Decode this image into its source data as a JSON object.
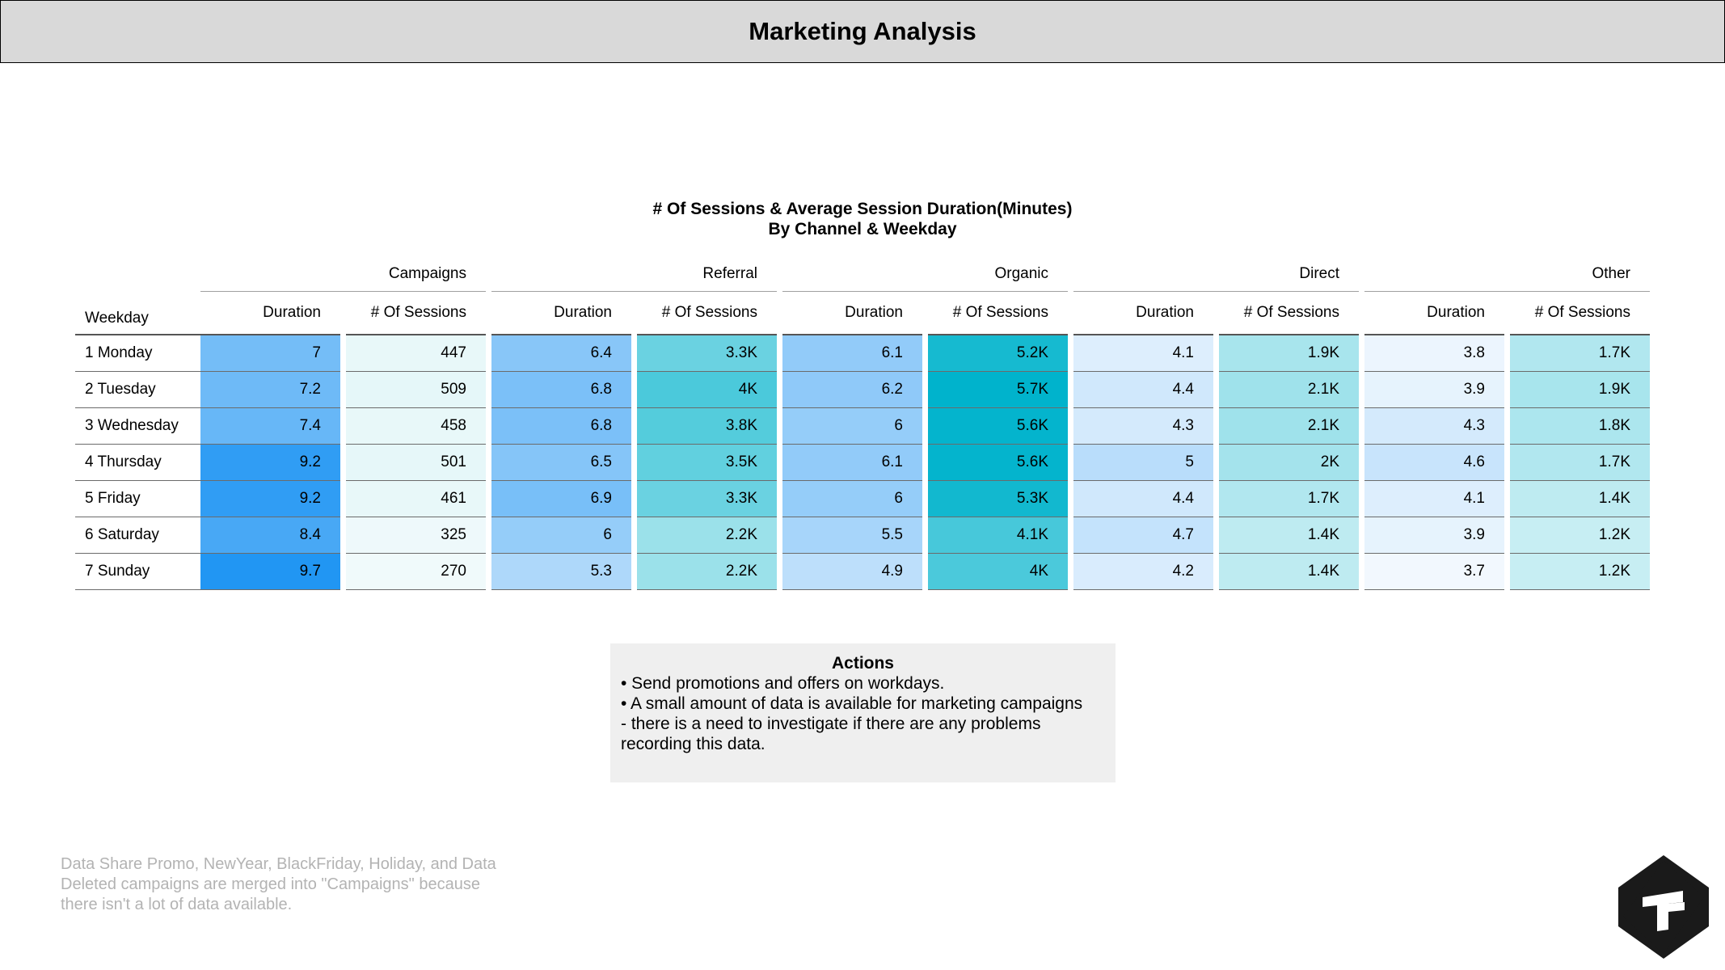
{
  "header": {
    "title": "Marketing Analysis"
  },
  "chart_data": {
    "type": "table",
    "title_line1": "# Of Sessions & Average Session Duration(Minutes)",
    "title_line2": "By Channel & Weekday",
    "row_header": "Weekday",
    "channels": [
      "Campaigns",
      "Referral",
      "Organic",
      "Direct",
      "Other"
    ],
    "metric_labels": [
      "Duration",
      "# Of Sessions"
    ],
    "rows": [
      {
        "weekday": "1 Monday",
        "values": [
          {
            "duration": "7",
            "sessions": "447",
            "sessions_num": 447
          },
          {
            "duration": "6.4",
            "sessions": "3.3K",
            "sessions_num": 3300
          },
          {
            "duration": "6.1",
            "sessions": "5.2K",
            "sessions_num": 5200
          },
          {
            "duration": "4.1",
            "sessions": "1.9K",
            "sessions_num": 1900
          },
          {
            "duration": "3.8",
            "sessions": "1.7K",
            "sessions_num": 1700
          }
        ]
      },
      {
        "weekday": "2 Tuesday",
        "values": [
          {
            "duration": "7.2",
            "sessions": "509",
            "sessions_num": 509
          },
          {
            "duration": "6.8",
            "sessions": "4K",
            "sessions_num": 4000
          },
          {
            "duration": "6.2",
            "sessions": "5.7K",
            "sessions_num": 5700
          },
          {
            "duration": "4.4",
            "sessions": "2.1K",
            "sessions_num": 2100
          },
          {
            "duration": "3.9",
            "sessions": "1.9K",
            "sessions_num": 1900
          }
        ]
      },
      {
        "weekday": "3 Wednesday",
        "values": [
          {
            "duration": "7.4",
            "sessions": "458",
            "sessions_num": 458
          },
          {
            "duration": "6.8",
            "sessions": "3.8K",
            "sessions_num": 3800
          },
          {
            "duration": "6",
            "sessions": "5.6K",
            "sessions_num": 5600
          },
          {
            "duration": "4.3",
            "sessions": "2.1K",
            "sessions_num": 2100
          },
          {
            "duration": "4.3",
            "sessions": "1.8K",
            "sessions_num": 1800
          }
        ]
      },
      {
        "weekday": "4 Thursday",
        "values": [
          {
            "duration": "9.2",
            "sessions": "501",
            "sessions_num": 501
          },
          {
            "duration": "6.5",
            "sessions": "3.5K",
            "sessions_num": 3500
          },
          {
            "duration": "6.1",
            "sessions": "5.6K",
            "sessions_num": 5600
          },
          {
            "duration": "5",
            "sessions": "2K",
            "sessions_num": 2000
          },
          {
            "duration": "4.6",
            "sessions": "1.7K",
            "sessions_num": 1700
          }
        ]
      },
      {
        "weekday": "5 Friday",
        "values": [
          {
            "duration": "9.2",
            "sessions": "461",
            "sessions_num": 461
          },
          {
            "duration": "6.9",
            "sessions": "3.3K",
            "sessions_num": 3300
          },
          {
            "duration": "6",
            "sessions": "5.3K",
            "sessions_num": 5300
          },
          {
            "duration": "4.4",
            "sessions": "1.7K",
            "sessions_num": 1700
          },
          {
            "duration": "4.1",
            "sessions": "1.4K",
            "sessions_num": 1400
          }
        ]
      },
      {
        "weekday": "6 Saturday",
        "values": [
          {
            "duration": "8.4",
            "sessions": "325",
            "sessions_num": 325
          },
          {
            "duration": "6",
            "sessions": "2.2K",
            "sessions_num": 2200
          },
          {
            "duration": "5.5",
            "sessions": "4.1K",
            "sessions_num": 4100
          },
          {
            "duration": "4.7",
            "sessions": "1.4K",
            "sessions_num": 1400
          },
          {
            "duration": "3.9",
            "sessions": "1.2K",
            "sessions_num": 1200
          }
        ]
      },
      {
        "weekday": "7 Sunday",
        "values": [
          {
            "duration": "9.7",
            "sessions": "270",
            "sessions_num": 270
          },
          {
            "duration": "5.3",
            "sessions": "2.2K",
            "sessions_num": 2200
          },
          {
            "duration": "4.9",
            "sessions": "4K",
            "sessions_num": 4000
          },
          {
            "duration": "4.2",
            "sessions": "1.4K",
            "sessions_num": 1400
          },
          {
            "duration": "3.7",
            "sessions": "1.2K",
            "sessions_num": 1200
          }
        ]
      }
    ],
    "color_scales": {
      "duration": {
        "low": "#f2f8fe",
        "high": "#2196f3"
      },
      "sessions": {
        "low": "#f0fafb",
        "high": "#00b3cc"
      }
    }
  },
  "actions": {
    "title": "Actions",
    "lines": [
      "• Send promotions and offers on workdays.",
      "• A small amount of data is available for marketing campaigns",
      "- there is a need to investigate if there are any problems",
      "recording this data."
    ]
  },
  "footnote": {
    "lines": [
      "Data Share Promo, NewYear, BlackFriday, Holiday, and Data",
      "Deleted campaigns are merged into \"Campaigns\" because",
      "there isn't a lot of data available."
    ]
  },
  "logo": {
    "icon": "t-logo-icon"
  }
}
